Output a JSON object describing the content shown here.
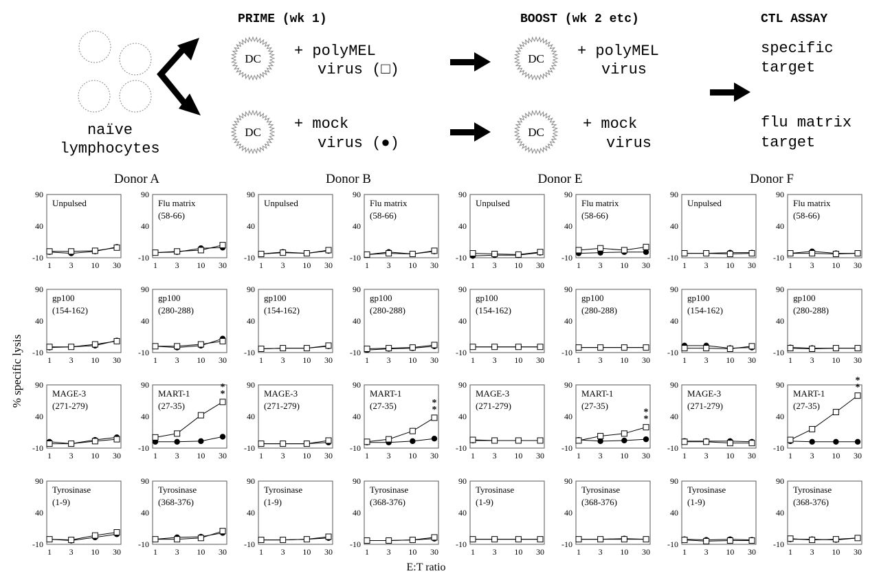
{
  "schematic": {
    "naive_line1": "naïve",
    "naive_line2": "lymphocytes",
    "prime_header": "PRIME (wk 1)",
    "boost_header": "BOOST (wk 2 etc)",
    "ctl_header": "CTL ASSAY",
    "dc_label": "DC",
    "prime_top_line1": "+ polyMEL",
    "prime_top_line2": "virus (□)",
    "prime_bottom_line1": "+ mock",
    "prime_bottom_line2": "virus (●)",
    "boost_top_line1": "+ polyMEL",
    "boost_top_line2": "virus",
    "boost_bottom_line1": "+ mock",
    "boost_bottom_line2": "virus",
    "ctl_top_line1": "specific",
    "ctl_top_line2": "target",
    "ctl_bottom_line1": "flu matrix",
    "ctl_bottom_line2": "target"
  },
  "axes": {
    "y_label": "% specific lysis",
    "x_label": "E:T ratio",
    "x_ticks": [
      "1",
      "3",
      "10",
      "30"
    ],
    "y_ticks": [
      "90",
      "40",
      "-10"
    ]
  },
  "chart_data": {
    "type": "line",
    "x": [
      1,
      3,
      10,
      30
    ],
    "x_scale": "log",
    "ylim": [
      -10,
      90
    ],
    "series_markers": {
      "polyMEL": "open square",
      "mock": "filled circle"
    },
    "donors": [
      "Donor A",
      "Donor B",
      "Donor E",
      "Donor F"
    ],
    "targets": [
      {
        "line1": "Unpulsed",
        "line2": ""
      },
      {
        "line1": "Flu matrix",
        "line2": "(58-66)"
      },
      {
        "line1": "gp100",
        "line2": "(154-162)"
      },
      {
        "line1": "gp100",
        "line2": "(280-288)"
      },
      {
        "line1": "MAGE-3",
        "line2": "(271-279)"
      },
      {
        "line1": "MART-1",
        "line2": "(27-35)"
      },
      {
        "line1": "Tyrosinase",
        "line2": "(1-9)"
      },
      {
        "line1": "Tyrosinase",
        "line2": "(368-376)"
      }
    ],
    "panels": [
      {
        "donor": 0,
        "target": 0,
        "polyMEL": [
          0,
          0,
          1,
          6
        ],
        "mock": [
          -1,
          -3,
          0,
          7
        ],
        "stars": ""
      },
      {
        "donor": 0,
        "target": 1,
        "polyMEL": [
          -2,
          0,
          2,
          10
        ],
        "mock": [
          -2,
          -1,
          5,
          6
        ],
        "stars": ""
      },
      {
        "donor": 0,
        "target": 2,
        "polyMEL": [
          -1,
          -1,
          3,
          8
        ],
        "mock": [
          -2,
          -1,
          1,
          9
        ],
        "stars": ""
      },
      {
        "donor": 0,
        "target": 3,
        "polyMEL": [
          0,
          0,
          3,
          8
        ],
        "mock": [
          0,
          -2,
          1,
          12
        ],
        "stars": ""
      },
      {
        "donor": 0,
        "target": 4,
        "polyMEL": [
          -3,
          -3,
          1,
          4
        ],
        "mock": [
          0,
          -3,
          3,
          7
        ],
        "stars": ""
      },
      {
        "donor": 0,
        "target": 5,
        "polyMEL": [
          7,
          13,
          42,
          63
        ],
        "mock": [
          0,
          0,
          1,
          8
        ],
        "stars": "**"
      },
      {
        "donor": 0,
        "target": 6,
        "polyMEL": [
          -2,
          -3,
          4,
          9
        ],
        "mock": [
          -2,
          -4,
          1,
          6
        ],
        "stars": ""
      },
      {
        "donor": 0,
        "target": 7,
        "polyMEL": [
          -2,
          -2,
          0,
          11
        ],
        "mock": [
          -2,
          1,
          2,
          8
        ],
        "stars": ""
      },
      {
        "donor": 1,
        "target": 0,
        "polyMEL": [
          -4,
          -2,
          -3,
          2
        ],
        "mock": [
          -4,
          -1,
          -3,
          1
        ],
        "stars": ""
      },
      {
        "donor": 1,
        "target": 1,
        "polyMEL": [
          -5,
          -3,
          -4,
          1
        ],
        "mock": [
          -5,
          -1,
          -4,
          0
        ],
        "stars": ""
      },
      {
        "donor": 1,
        "target": 2,
        "polyMEL": [
          -4,
          -3,
          -3,
          1
        ],
        "mock": [
          -4,
          -3,
          -3,
          0
        ],
        "stars": ""
      },
      {
        "donor": 1,
        "target": 3,
        "polyMEL": [
          -4,
          -3,
          -2,
          2
        ],
        "mock": [
          -6,
          -4,
          -3,
          0
        ],
        "stars": ""
      },
      {
        "donor": 1,
        "target": 4,
        "polyMEL": [
          -3,
          -3,
          -3,
          2
        ],
        "mock": [
          -3,
          -3,
          -3,
          -1
        ],
        "stars": ""
      },
      {
        "donor": 1,
        "target": 5,
        "polyMEL": [
          0,
          4,
          17,
          38
        ],
        "mock": [
          -1,
          -1,
          1,
          5
        ],
        "stars": "**"
      },
      {
        "donor": 1,
        "target": 6,
        "polyMEL": [
          -3,
          -3,
          -2,
          2
        ],
        "mock": [
          -3,
          -3,
          -2,
          0
        ],
        "stars": ""
      },
      {
        "donor": 1,
        "target": 7,
        "polyMEL": [
          -4,
          -4,
          -3,
          1
        ],
        "mock": [
          -4,
          -4,
          -3,
          -1
        ],
        "stars": ""
      },
      {
        "donor": 2,
        "target": 0,
        "polyMEL": [
          -3,
          -4,
          -5,
          -1
        ],
        "mock": [
          -7,
          -6,
          -6,
          -2
        ],
        "stars": ""
      },
      {
        "donor": 2,
        "target": 1,
        "polyMEL": [
          2,
          5,
          2,
          7
        ],
        "mock": [
          -3,
          -2,
          -1,
          -1
        ],
        "stars": ""
      },
      {
        "donor": 2,
        "target": 2,
        "polyMEL": [
          -1,
          -1,
          -1,
          -1
        ],
        "mock": [
          -1,
          -1,
          -1,
          -1
        ],
        "stars": ""
      },
      {
        "donor": 2,
        "target": 3,
        "polyMEL": [
          -2,
          -2,
          -2,
          -2
        ],
        "mock": [
          -2,
          -2,
          -2,
          -2
        ],
        "stars": ""
      },
      {
        "donor": 2,
        "target": 4,
        "polyMEL": [
          3,
          2,
          2,
          2
        ],
        "mock": [
          2,
          2,
          2,
          2
        ],
        "stars": ""
      },
      {
        "donor": 2,
        "target": 5,
        "polyMEL": [
          2,
          9,
          13,
          23
        ],
        "mock": [
          3,
          1,
          2,
          4
        ],
        "stars": "**"
      },
      {
        "donor": 2,
        "target": 6,
        "polyMEL": [
          -2,
          -2,
          -2,
          -2
        ],
        "mock": [
          -2,
          -2,
          -2,
          -2
        ],
        "stars": ""
      },
      {
        "donor": 2,
        "target": 7,
        "polyMEL": [
          -2,
          -2,
          -2,
          -2
        ],
        "mock": [
          -2,
          -2,
          -1,
          -2
        ],
        "stars": ""
      },
      {
        "donor": 3,
        "target": 0,
        "polyMEL": [
          -3,
          -3,
          -4,
          -3
        ],
        "mock": [
          -3,
          -3,
          -2,
          -2
        ],
        "stars": ""
      },
      {
        "donor": 3,
        "target": 1,
        "polyMEL": [
          -3,
          -3,
          -4,
          -3
        ],
        "mock": [
          -3,
          0,
          -3,
          -3
        ],
        "stars": ""
      },
      {
        "donor": 3,
        "target": 2,
        "polyMEL": [
          -3,
          -3,
          -4,
          0
        ],
        "mock": [
          1,
          1,
          -3,
          -2
        ],
        "stars": ""
      },
      {
        "donor": 3,
        "target": 3,
        "polyMEL": [
          -3,
          -4,
          -3,
          -3
        ],
        "mock": [
          -2,
          -3,
          -3,
          -3
        ],
        "stars": ""
      },
      {
        "donor": 3,
        "target": 4,
        "polyMEL": [
          0,
          0,
          -2,
          -2
        ],
        "mock": [
          1,
          1,
          1,
          0
        ],
        "stars": ""
      },
      {
        "donor": 3,
        "target": 5,
        "polyMEL": [
          3,
          20,
          47,
          73
        ],
        "mock": [
          1,
          0,
          0,
          0
        ],
        "stars": "**"
      },
      {
        "donor": 3,
        "target": 6,
        "polyMEL": [
          -3,
          -5,
          -4,
          -4
        ],
        "mock": [
          -2,
          -3,
          -2,
          -3
        ],
        "stars": ""
      },
      {
        "donor": 3,
        "target": 7,
        "polyMEL": [
          -1,
          -3,
          -2,
          0
        ],
        "mock": [
          -2,
          -2,
          -3,
          0
        ],
        "stars": ""
      }
    ]
  }
}
